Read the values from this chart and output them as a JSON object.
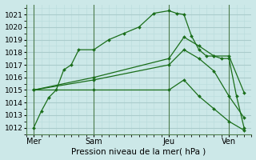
{
  "background_color": "#cce8e8",
  "grid_major_color": "#aacccc",
  "grid_minor_color": "#bbdddd",
  "line_color": "#1a6e1a",
  "marker_color": "#1a6e1a",
  "xlabel": "Pression niveau de la mer( hPa )",
  "xlabel_fontsize": 7.5,
  "ylim": [
    1011.5,
    1021.8
  ],
  "yticks": [
    1012,
    1013,
    1014,
    1015,
    1016,
    1017,
    1018,
    1019,
    1020,
    1021
  ],
  "ytick_fontsize": 6.5,
  "xtick_labels": [
    "Mer",
    "Sam",
    "Jeu",
    "Ven"
  ],
  "xtick_positions": [
    0,
    4,
    9,
    13
  ],
  "xtick_fontsize": 7,
  "xlim": [
    -0.5,
    14.5
  ],
  "vline_positions": [
    0,
    4,
    9,
    13
  ],
  "vline_color": "#4d7c4d",
  "series": [
    {
      "x": [
        0,
        0.5,
        1,
        1.5,
        2,
        2.5,
        3,
        4,
        5,
        6,
        7,
        8,
        9,
        9.5,
        10,
        10.5,
        11,
        11.5,
        12,
        12.5,
        13,
        13.5,
        14
      ],
      "y": [
        1012.0,
        1013.3,
        1014.4,
        1015.0,
        1016.6,
        1017.0,
        1018.2,
        1018.2,
        1019.0,
        1019.5,
        1020.0,
        1021.1,
        1021.3,
        1021.1,
        1021.0,
        1019.3,
        1018.2,
        1017.7,
        1017.7,
        1017.5,
        1017.5,
        1014.5,
        1012.0
      ]
    },
    {
      "x": [
        0,
        4,
        9,
        10,
        11,
        12,
        13,
        14
      ],
      "y": [
        1015.0,
        1016.0,
        1017.5,
        1019.2,
        1018.5,
        1017.7,
        1017.7,
        1014.8
      ]
    },
    {
      "x": [
        0,
        4,
        9,
        10,
        11,
        12,
        13,
        14
      ],
      "y": [
        1015.0,
        1015.8,
        1017.0,
        1018.2,
        1017.5,
        1016.5,
        1014.5,
        1012.8
      ]
    },
    {
      "x": [
        0,
        4,
        9,
        10,
        11,
        12,
        13,
        14
      ],
      "y": [
        1015.0,
        1015.0,
        1015.0,
        1015.8,
        1014.5,
        1013.5,
        1012.5,
        1011.8
      ]
    }
  ]
}
